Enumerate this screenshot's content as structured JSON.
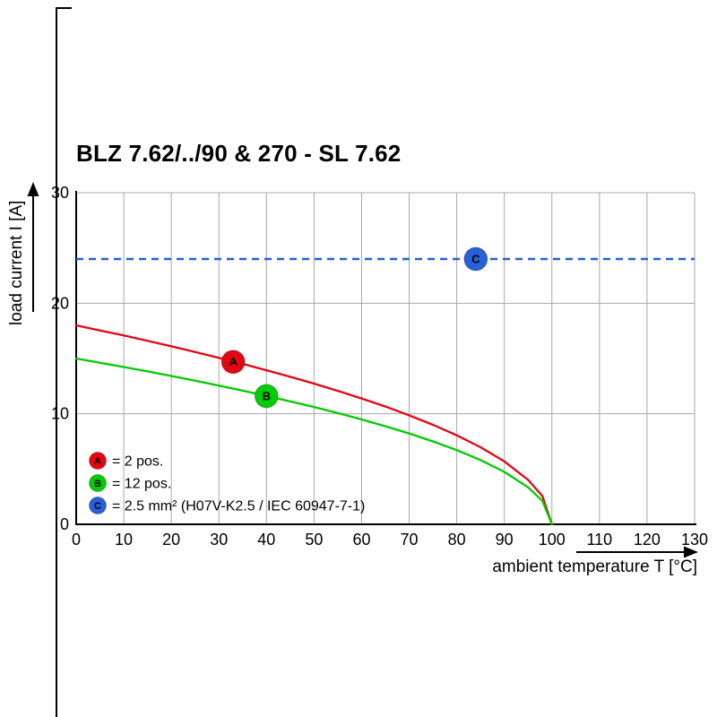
{
  "page": {
    "title": "BLZ 7.62/../90 & 270 - SL 7.62"
  },
  "chart_data": {
    "type": "line",
    "title": "BLZ 7.62/../90 & 270 - SL 7.62",
    "xlabel": "ambient temperature T [°C]",
    "ylabel": "load current I [A]",
    "xlim": [
      0,
      130
    ],
    "ylim": [
      0,
      30
    ],
    "x_ticks": [
      0,
      10,
      20,
      30,
      40,
      50,
      60,
      70,
      80,
      90,
      100,
      110,
      120,
      130
    ],
    "y_ticks": [
      0,
      10,
      20,
      30
    ],
    "grid": true,
    "legend_position": "bottom-left-inside",
    "series": [
      {
        "name": "A",
        "legend": "= 2 pos.",
        "color": "#e30613",
        "line_style": "solid",
        "x": [
          0,
          5,
          10,
          15,
          20,
          25,
          30,
          35,
          40,
          45,
          50,
          55,
          60,
          65,
          70,
          75,
          80,
          85,
          90,
          95,
          98,
          100
        ],
        "y": [
          18,
          17.54,
          17.08,
          16.6,
          16.1,
          15.59,
          15.06,
          14.51,
          13.94,
          13.35,
          12.73,
          12.07,
          11.38,
          10.65,
          9.86,
          9,
          8.05,
          6.97,
          5.69,
          4.02,
          2.55,
          0
        ],
        "marker": {
          "letter": "A",
          "x": 33,
          "y": 14.7
        }
      },
      {
        "name": "B",
        "legend": "= 12 pos.",
        "color": "#00cc00",
        "line_style": "solid",
        "x": [
          0,
          5,
          10,
          15,
          20,
          25,
          30,
          35,
          40,
          45,
          50,
          55,
          60,
          65,
          70,
          75,
          80,
          85,
          90,
          95,
          98,
          100
        ],
        "y": [
          15,
          14.62,
          14.23,
          13.83,
          13.42,
          12.99,
          12.55,
          12.09,
          11.62,
          11.12,
          10.61,
          10.06,
          9.49,
          8.87,
          8.22,
          7.5,
          6.71,
          5.81,
          4.74,
          3.35,
          2.12,
          0
        ],
        "marker": {
          "letter": "B",
          "x": 40,
          "y": 11.6
        }
      },
      {
        "name": "C",
        "legend": "= 2.5 mm² (H07V-K2.5 / IEC 60947-7-1)",
        "color": "#2760d8",
        "line_style": "dashed",
        "y_const": 24,
        "marker": {
          "letter": "C",
          "x": 84,
          "y": 24
        }
      }
    ]
  }
}
